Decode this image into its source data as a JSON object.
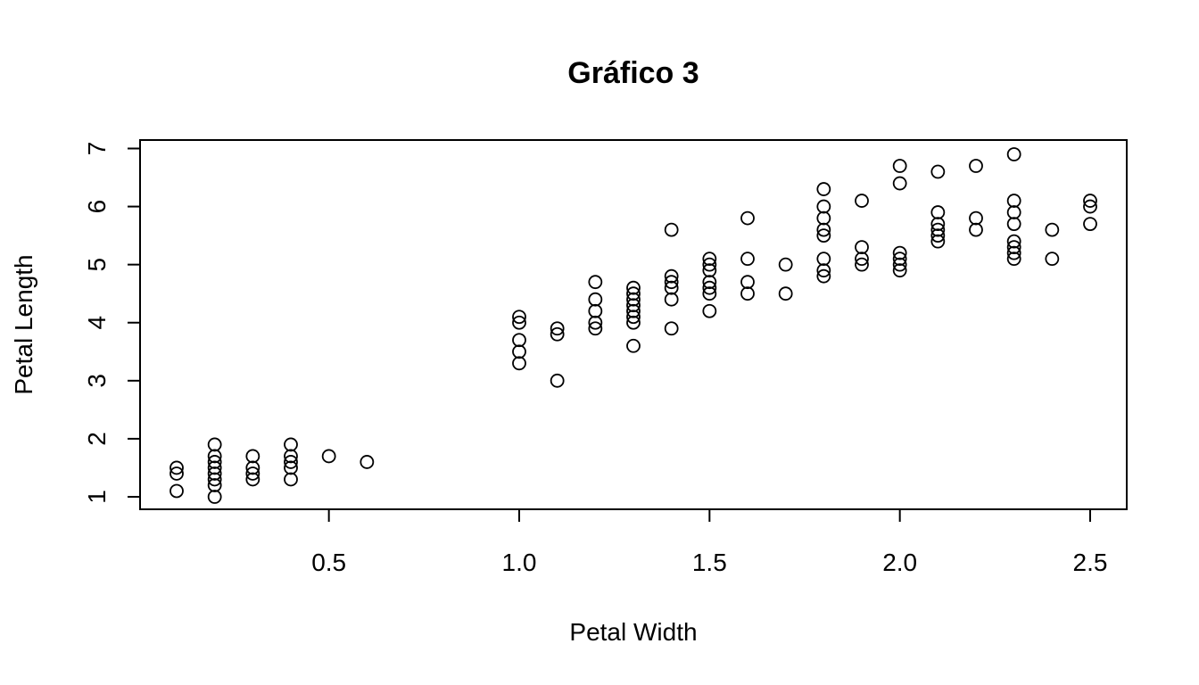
{
  "chart_data": {
    "type": "scatter",
    "title": "Gráfico 3",
    "xlabel": "Petal Width",
    "ylabel": "Petal Length",
    "xlim": [
      0.1,
      2.5
    ],
    "ylim": [
      1.0,
      6.9
    ],
    "xticks": [
      0.5,
      1.0,
      1.5,
      2.0,
      2.5
    ],
    "xtick_labels": [
      "0.5",
      "1.0",
      "1.5",
      "2.0",
      "2.5"
    ],
    "yticks": [
      1,
      2,
      3,
      4,
      5,
      6,
      7
    ],
    "ytick_labels": [
      "1",
      "2",
      "3",
      "4",
      "5",
      "6",
      "7"
    ],
    "grid": false,
    "points": [
      [
        0.1,
        1.1
      ],
      [
        0.1,
        1.4
      ],
      [
        0.1,
        1.5
      ],
      [
        0.2,
        1.0
      ],
      [
        0.2,
        1.2
      ],
      [
        0.2,
        1.3
      ],
      [
        0.2,
        1.4
      ],
      [
        0.2,
        1.5
      ],
      [
        0.2,
        1.6
      ],
      [
        0.2,
        1.7
      ],
      [
        0.2,
        1.9
      ],
      [
        0.3,
        1.3
      ],
      [
        0.3,
        1.4
      ],
      [
        0.3,
        1.5
      ],
      [
        0.3,
        1.7
      ],
      [
        0.4,
        1.3
      ],
      [
        0.4,
        1.5
      ],
      [
        0.4,
        1.6
      ],
      [
        0.4,
        1.7
      ],
      [
        0.4,
        1.9
      ],
      [
        0.5,
        1.7
      ],
      [
        0.6,
        1.6
      ],
      [
        1.0,
        3.3
      ],
      [
        1.0,
        3.5
      ],
      [
        1.0,
        3.7
      ],
      [
        1.0,
        4.0
      ],
      [
        1.0,
        4.1
      ],
      [
        1.1,
        3.0
      ],
      [
        1.1,
        3.8
      ],
      [
        1.1,
        3.9
      ],
      [
        1.2,
        3.9
      ],
      [
        1.2,
        4.0
      ],
      [
        1.2,
        4.2
      ],
      [
        1.2,
        4.4
      ],
      [
        1.2,
        4.7
      ],
      [
        1.3,
        3.6
      ],
      [
        1.3,
        4.0
      ],
      [
        1.3,
        4.1
      ],
      [
        1.3,
        4.2
      ],
      [
        1.3,
        4.3
      ],
      [
        1.3,
        4.4
      ],
      [
        1.3,
        4.5
      ],
      [
        1.3,
        4.6
      ],
      [
        1.4,
        3.9
      ],
      [
        1.4,
        4.4
      ],
      [
        1.4,
        4.6
      ],
      [
        1.4,
        4.7
      ],
      [
        1.4,
        4.8
      ],
      [
        1.4,
        5.6
      ],
      [
        1.5,
        4.2
      ],
      [
        1.5,
        4.5
      ],
      [
        1.5,
        4.6
      ],
      [
        1.5,
        4.7
      ],
      [
        1.5,
        4.9
      ],
      [
        1.5,
        5.0
      ],
      [
        1.5,
        5.1
      ],
      [
        1.6,
        4.5
      ],
      [
        1.6,
        4.7
      ],
      [
        1.6,
        5.1
      ],
      [
        1.6,
        5.8
      ],
      [
        1.7,
        4.5
      ],
      [
        1.7,
        5.0
      ],
      [
        1.8,
        4.8
      ],
      [
        1.8,
        4.9
      ],
      [
        1.8,
        5.1
      ],
      [
        1.8,
        5.5
      ],
      [
        1.8,
        5.6
      ],
      [
        1.8,
        5.8
      ],
      [
        1.8,
        6.0
      ],
      [
        1.8,
        6.3
      ],
      [
        1.9,
        5.0
      ],
      [
        1.9,
        5.1
      ],
      [
        1.9,
        5.3
      ],
      [
        1.9,
        6.1
      ],
      [
        2.0,
        4.9
      ],
      [
        2.0,
        5.0
      ],
      [
        2.0,
        5.1
      ],
      [
        2.0,
        5.2
      ],
      [
        2.0,
        6.4
      ],
      [
        2.0,
        6.7
      ],
      [
        2.1,
        5.4
      ],
      [
        2.1,
        5.5
      ],
      [
        2.1,
        5.6
      ],
      [
        2.1,
        5.7
      ],
      [
        2.1,
        5.9
      ],
      [
        2.1,
        6.6
      ],
      [
        2.2,
        5.6
      ],
      [
        2.2,
        5.8
      ],
      [
        2.2,
        6.7
      ],
      [
        2.3,
        5.1
      ],
      [
        2.3,
        5.2
      ],
      [
        2.3,
        5.3
      ],
      [
        2.3,
        5.4
      ],
      [
        2.3,
        5.7
      ],
      [
        2.3,
        5.9
      ],
      [
        2.3,
        6.1
      ],
      [
        2.3,
        6.9
      ],
      [
        2.4,
        5.1
      ],
      [
        2.4,
        5.6
      ],
      [
        2.5,
        5.7
      ],
      [
        2.5,
        6.0
      ],
      [
        2.5,
        6.1
      ]
    ]
  }
}
